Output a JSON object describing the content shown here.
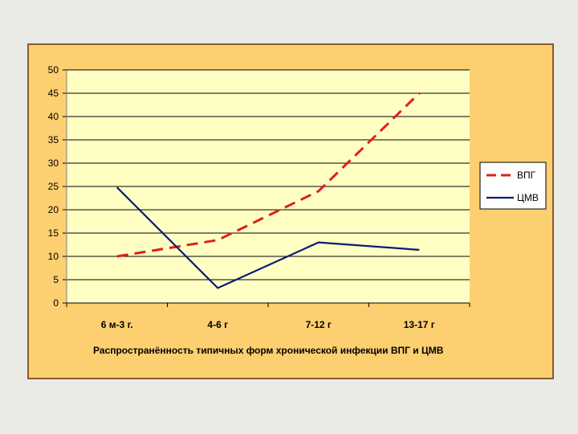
{
  "chart_data": {
    "type": "line",
    "title": "",
    "xlabel": "Распространённость  типичных форм хронической инфекции ВПГ и ЦМВ",
    "ylabel": "",
    "categories": [
      "6 м-3 г.",
      "4-6 г",
      "7-12 г",
      "13-17 г"
    ],
    "ylim": [
      0,
      50
    ],
    "yticks": [
      "0",
      "5",
      "10",
      "15",
      "20",
      "25",
      "30",
      "35",
      "40",
      "45",
      "50"
    ],
    "grid": true,
    "legend_position": "right",
    "series": [
      {
        "name": "ВПГ",
        "values": [
          10,
          13.5,
          24,
          45
        ],
        "color": "#e0201b",
        "style": "dashed"
      },
      {
        "name": "ЦМВ",
        "values": [
          24.8,
          3.2,
          13,
          11.4
        ],
        "color": "#0c1a78",
        "style": "solid"
      }
    ],
    "colors": {
      "plot_background": "#ffffc4",
      "frame_background": "#fccf70",
      "frame_border": "#8a5a2c"
    }
  }
}
